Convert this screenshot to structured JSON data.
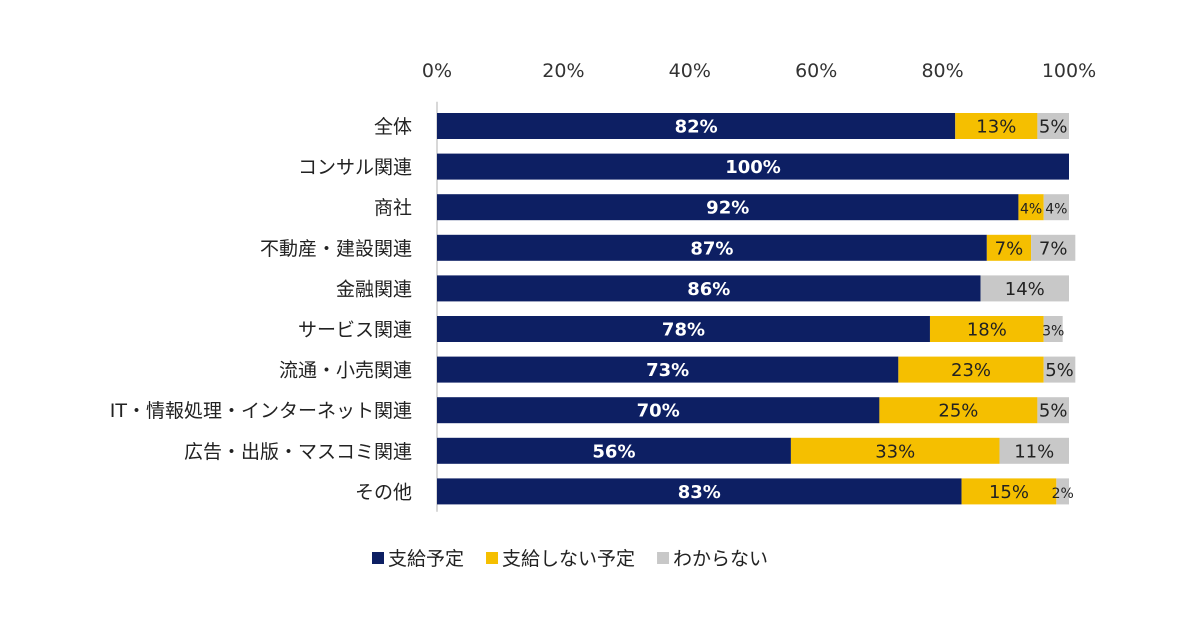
{
  "colors": {
    "planned": "#0d1f63",
    "not_planned": "#f5bf00",
    "unknown": "#c8c8c8",
    "axis": "#b0b0b0"
  },
  "chart_data": {
    "type": "bar",
    "orientation": "horizontal",
    "stacked": true,
    "xlim": [
      0,
      100
    ],
    "x_ticks": [
      "0%",
      "20%",
      "40%",
      "60%",
      "80%",
      "100%"
    ],
    "legend_position": "bottom",
    "grid": false,
    "categories": [
      "全体",
      "コンサル関連",
      "商社",
      "不動産・建設関連",
      "金融関連",
      "サービス関連",
      "流通・小売関連",
      "IT・情報処理・インターネット関連",
      "広告・出版・マスコミ関連",
      "その他"
    ],
    "series": [
      {
        "name": "支給予定",
        "color": "#0d1f63",
        "values": [
          82,
          100,
          92,
          87,
          86,
          78,
          73,
          70,
          56,
          83
        ],
        "labels": [
          "82%",
          "100%",
          "92%",
          "87%",
          "86%",
          "78%",
          "73%",
          "70%",
          "56%",
          "83%"
        ]
      },
      {
        "name": "支給しない予定",
        "color": "#f5bf00",
        "values": [
          13,
          0,
          4,
          7,
          0,
          18,
          23,
          25,
          33,
          15
        ],
        "labels": [
          "13%",
          "",
          "4%",
          "7%",
          "",
          "18%",
          "23%",
          "25%",
          "33%",
          "15%"
        ]
      },
      {
        "name": "わからない",
        "color": "#c8c8c8",
        "values": [
          5,
          0,
          4,
          7,
          14,
          3,
          5,
          5,
          11,
          2
        ],
        "labels": [
          "5%",
          "",
          "4%",
          "7%",
          "14%",
          "3%",
          "5%",
          "5%",
          "11%",
          "2%"
        ]
      }
    ]
  }
}
